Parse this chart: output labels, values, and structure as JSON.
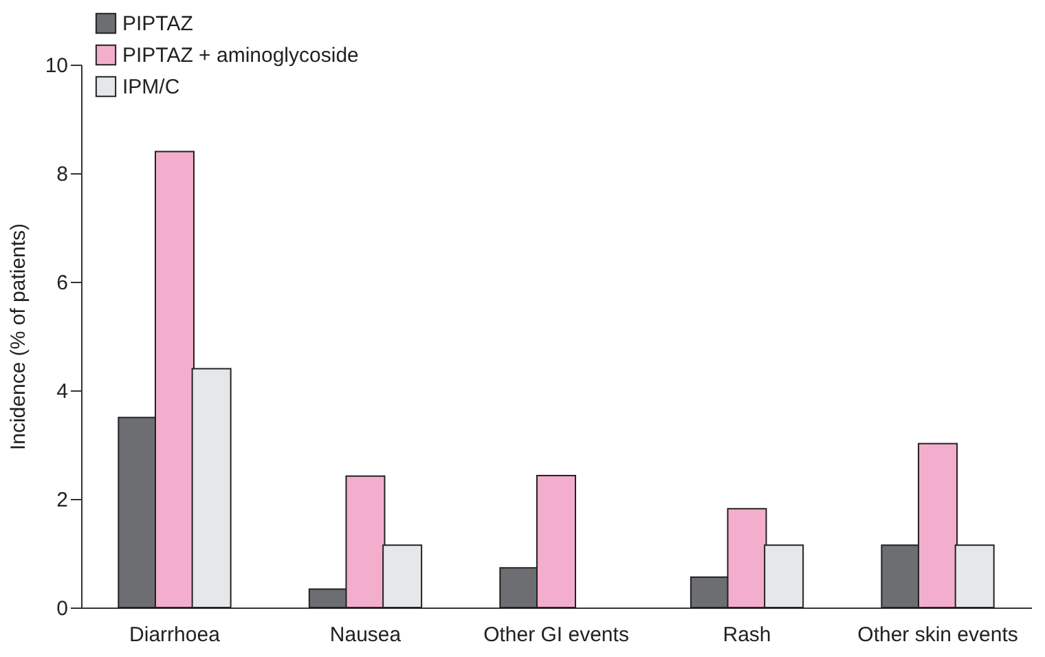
{
  "chart_data": {
    "type": "bar",
    "ylabel": "Incidence (% of patients)",
    "categories": [
      "Diarrhoea",
      "Nausea",
      "Other GI events",
      "Rash",
      "Other skin events"
    ],
    "series": [
      {
        "name": "PIPTAZ",
        "color": "#6d6e71",
        "values": [
          3.5,
          0.34,
          0.73,
          0.56,
          1.15
        ]
      },
      {
        "name": "PIPTAZ + aminoglycoside",
        "color": "#f4aecd",
        "values": [
          8.4,
          2.42,
          2.43,
          1.82,
          3.02
        ]
      },
      {
        "name": "IPM/C",
        "color": "#e6e7e8",
        "values": [
          4.4,
          1.15,
          null,
          1.15,
          1.15
        ]
      }
    ],
    "ylim": [
      0,
      10
    ],
    "yticks": [
      0,
      2,
      4,
      6,
      8,
      10
    ],
    "grid": false,
    "legend": "top left"
  }
}
